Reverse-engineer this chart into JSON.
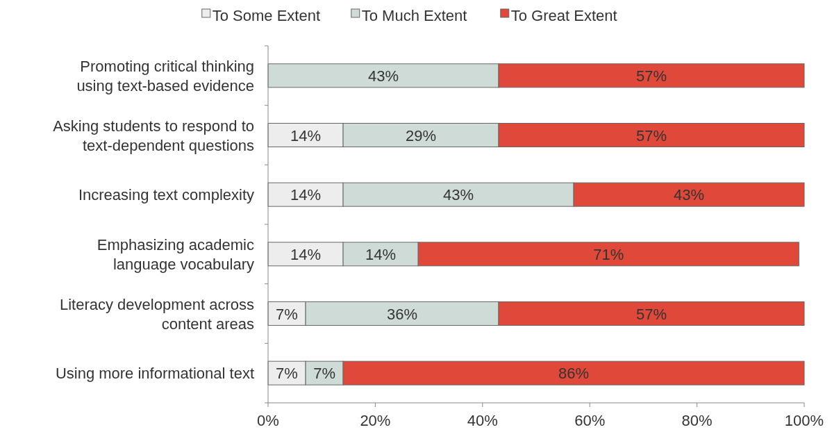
{
  "chart_data": {
    "type": "bar",
    "orientation": "horizontal",
    "stacked": true,
    "legend": "top",
    "grid": false,
    "categories": [
      "Promoting critical thinking\nusing text-based evidence",
      "Asking students to respond to\ntext-dependent questions",
      "Increasing text complexity",
      "Emphasizing academic\nlanguage vocabulary",
      "Literacy development across\ncontent areas",
      "Using more informational text"
    ],
    "series": [
      {
        "name": "To Some Extent",
        "color": "#ededed",
        "values": [
          null,
          14,
          14,
          14,
          7,
          7
        ],
        "value_labels": [
          null,
          "14%",
          "14%",
          "14%",
          "7%",
          "7%"
        ]
      },
      {
        "name": "To Much Extent",
        "color": "#cfdbd7",
        "values": [
          43,
          29,
          43,
          14,
          36,
          7
        ],
        "value_labels": [
          "43%",
          "29%",
          "43%",
          "14%",
          "36%",
          "7%"
        ]
      },
      {
        "name": "To Great Extent",
        "color": "#e0483a",
        "values": [
          57,
          57,
          43,
          71,
          57,
          86
        ],
        "value_labels": [
          "57%",
          "57%",
          "43%",
          "71%",
          "57%",
          "86%"
        ]
      }
    ],
    "xlim": [
      0,
      100
    ],
    "xticks": [
      {
        "value": 0,
        "label": "0%"
      },
      {
        "value": 20,
        "label": "20%"
      },
      {
        "value": 40,
        "label": "40%"
      },
      {
        "value": 60,
        "label": "60%"
      },
      {
        "value": 80,
        "label": "80%"
      },
      {
        "value": 100,
        "label": "100%"
      }
    ]
  }
}
